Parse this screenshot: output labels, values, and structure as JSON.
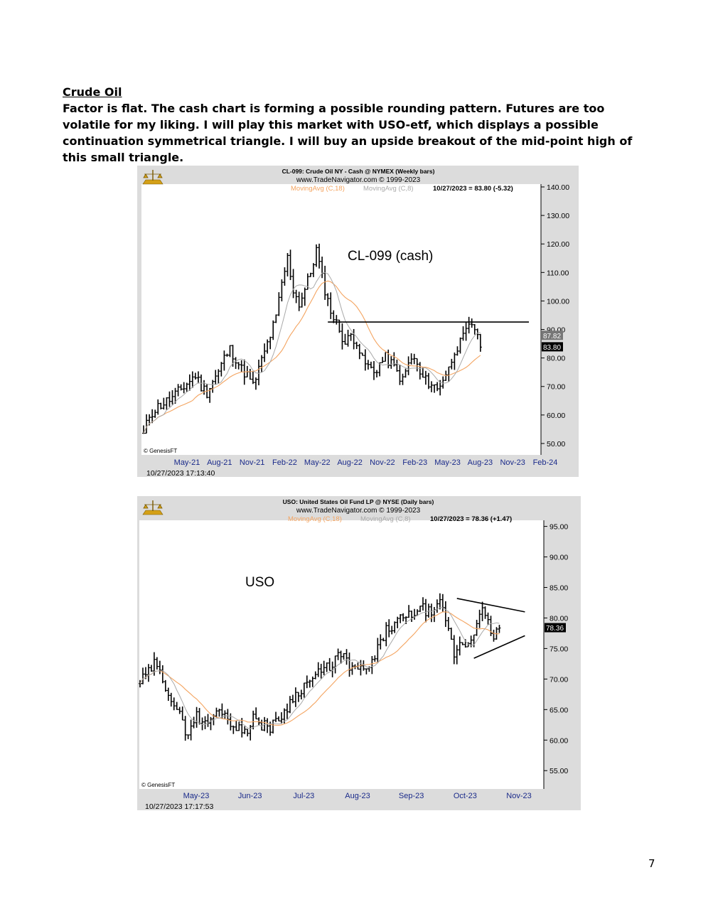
{
  "document": {
    "heading": "Crude Oil",
    "paragraph": "Factor is flat. The cash chart is forming a possible rounding pattern. Futures are too volatile for my liking. I will play this market with USO-etf, which displays a possible continuation symmetrical triangle. I will buy an upside breakout of the mid-point high of this small triangle.",
    "page_number": "7"
  },
  "colors": {
    "frame_bg": "#dcdcdc",
    "plot_bg": "#ffffff",
    "bars": "#000000",
    "ma18": "#f4a460",
    "ma8": "#a9a9a9",
    "annotation_line": "#000000"
  },
  "chart_data": [
    {
      "type": "ohlc",
      "title": "CL-099:  Crude Oil NY - Cash @ NYMEX  (Weekly bars)",
      "subtitle": "www.TradeNavigator.com © 1999-2023",
      "legend": {
        "ma18": "MovingAvg (C,18)",
        "ma8": "MovingAvg (C,8)",
        "quote": "10/27/2023 = 83.80 (-5.32)"
      },
      "annotation_label": "CL-099 (cash)",
      "watermark": "© GenesisFT",
      "timestamp": "10/27/2023 17:13:40",
      "x_ticks": [
        "May-21",
        "Aug-21",
        "Nov-21",
        "Feb-22",
        "May-22",
        "Aug-22",
        "Nov-22",
        "Feb-23",
        "May-23",
        "Aug-23",
        "Nov-23",
        "Feb-24"
      ],
      "y_ticks": [
        "140.00",
        "130.00",
        "120.00",
        "110.00",
        "100.00",
        "90.00",
        "80.00",
        "70.00",
        "60.00",
        "50.00"
      ],
      "ylim": [
        46,
        141
      ],
      "price_labels": [
        {
          "text": "87.82",
          "value": 87.82
        },
        {
          "text": "83.80",
          "value": 83.8
        }
      ],
      "resistance_line": {
        "start_bar": 64,
        "end_bar": 139,
        "value": 92.6
      },
      "close_anchors": [
        [
          0,
          53
        ],
        [
          2,
          60
        ],
        [
          5,
          63
        ],
        [
          10,
          66
        ],
        [
          14,
          70
        ],
        [
          16,
          72
        ],
        [
          18,
          74
        ],
        [
          20,
          70
        ],
        [
          22,
          68
        ],
        [
          24,
          72
        ],
        [
          26,
          75
        ],
        [
          28,
          80
        ],
        [
          30,
          83
        ],
        [
          32,
          80
        ],
        [
          34,
          76
        ],
        [
          36,
          74
        ],
        [
          38,
          70
        ],
        [
          40,
          76
        ],
        [
          42,
          82
        ],
        [
          44,
          88
        ],
        [
          46,
          94
        ],
        [
          48,
          106
        ],
        [
          50,
          115
        ],
        [
          52,
          104
        ],
        [
          54,
          99
        ],
        [
          56,
          104
        ],
        [
          58,
          110
        ],
        [
          60,
          118
        ],
        [
          62,
          108
        ],
        [
          64,
          100
        ],
        [
          66,
          94
        ],
        [
          68,
          90
        ],
        [
          70,
          85
        ],
        [
          72,
          88
        ],
        [
          74,
          86
        ],
        [
          76,
          79
        ],
        [
          78,
          77
        ],
        [
          80,
          75
        ],
        [
          82,
          78
        ],
        [
          84,
          80
        ],
        [
          86,
          78
        ],
        [
          88,
          75
        ],
        [
          90,
          72
        ],
        [
          92,
          78
        ],
        [
          94,
          80
        ],
        [
          96,
          74
        ],
        [
          98,
          72
        ],
        [
          100,
          71
        ],
        [
          102,
          69
        ],
        [
          104,
          73
        ],
        [
          106,
          76
        ],
        [
          108,
          83
        ],
        [
          110,
          85
        ],
        [
          112,
          89
        ],
        [
          114,
          92
        ],
        [
          116,
          89
        ],
        [
          117,
          83.8
        ]
      ]
    },
    {
      "type": "ohlc",
      "title": "USO:  United States Oil Fund LP @ NYSE  (Daily bars)",
      "subtitle": "www.TradeNavigator.com © 1999-2023",
      "legend": {
        "ma18": "MovingAvg (C,18)",
        "ma8": "MovingAvg (C,8)",
        "quote": "10/27/2023 = 78.36 (+1.47)"
      },
      "annotation_label": "USO",
      "watermark": "© GenesisFT",
      "timestamp": "10/27/2023 17:17:53",
      "x_ticks": [
        "May-23",
        "Jun-23",
        "Jul-23",
        "Aug-23",
        "Sep-23",
        "Oct-23",
        "Nov-23"
      ],
      "y_ticks": [
        "95.00",
        "90.00",
        "85.00",
        "80.00",
        "75.00",
        "70.00",
        "65.00",
        "60.00",
        "55.00"
      ],
      "ylim": [
        52,
        96
      ],
      "price_labels": [
        {
          "text": "78.36",
          "value": 78.36
        }
      ],
      "triangle": {
        "upper": [
          [
            112,
            83.2
          ],
          [
            130,
            81
          ]
        ],
        "lower": [
          [
            118,
            73.4
          ],
          [
            130,
            77.1
          ]
        ]
      },
      "close_anchors": [
        [
          0,
          69.5
        ],
        [
          3,
          71
        ],
        [
          5,
          72.5
        ],
        [
          8,
          70
        ],
        [
          11,
          67
        ],
        [
          14,
          64
        ],
        [
          16,
          61
        ],
        [
          18,
          62.5
        ],
        [
          20,
          64
        ],
        [
          23,
          62.5
        ],
        [
          26,
          64
        ],
        [
          29,
          65
        ],
        [
          31,
          63.5
        ],
        [
          34,
          62
        ],
        [
          36,
          61.5
        ],
        [
          38,
          62
        ],
        [
          40,
          64
        ],
        [
          42,
          62
        ],
        [
          44,
          63
        ],
        [
          46,
          62
        ],
        [
          48,
          63
        ],
        [
          50,
          64
        ],
        [
          52,
          65.5
        ],
        [
          55,
          67.5
        ],
        [
          58,
          69
        ],
        [
          62,
          70.5
        ],
        [
          65,
          71.5
        ],
        [
          68,
          72.5
        ],
        [
          70,
          74
        ],
        [
          73,
          73
        ],
        [
          75,
          71.5
        ],
        [
          77,
          72
        ],
        [
          79,
          71
        ],
        [
          81,
          72
        ],
        [
          83,
          73.5
        ],
        [
          85,
          76
        ],
        [
          87,
          78
        ],
        [
          89,
          78.5
        ],
        [
          91,
          79.5
        ],
        [
          94,
          80
        ],
        [
          97,
          81
        ],
        [
          100,
          81.5
        ],
        [
          102,
          81
        ],
        [
          104,
          80.5
        ],
        [
          106,
          82.5
        ],
        [
          108,
          80
        ],
        [
          110,
          76
        ],
        [
          111,
          74
        ],
        [
          113,
          76
        ],
        [
          115,
          75.5
        ],
        [
          117,
          77
        ],
        [
          119,
          79
        ],
        [
          121,
          81
        ],
        [
          123,
          79
        ],
        [
          125,
          77
        ],
        [
          127,
          78.36
        ]
      ]
    }
  ]
}
